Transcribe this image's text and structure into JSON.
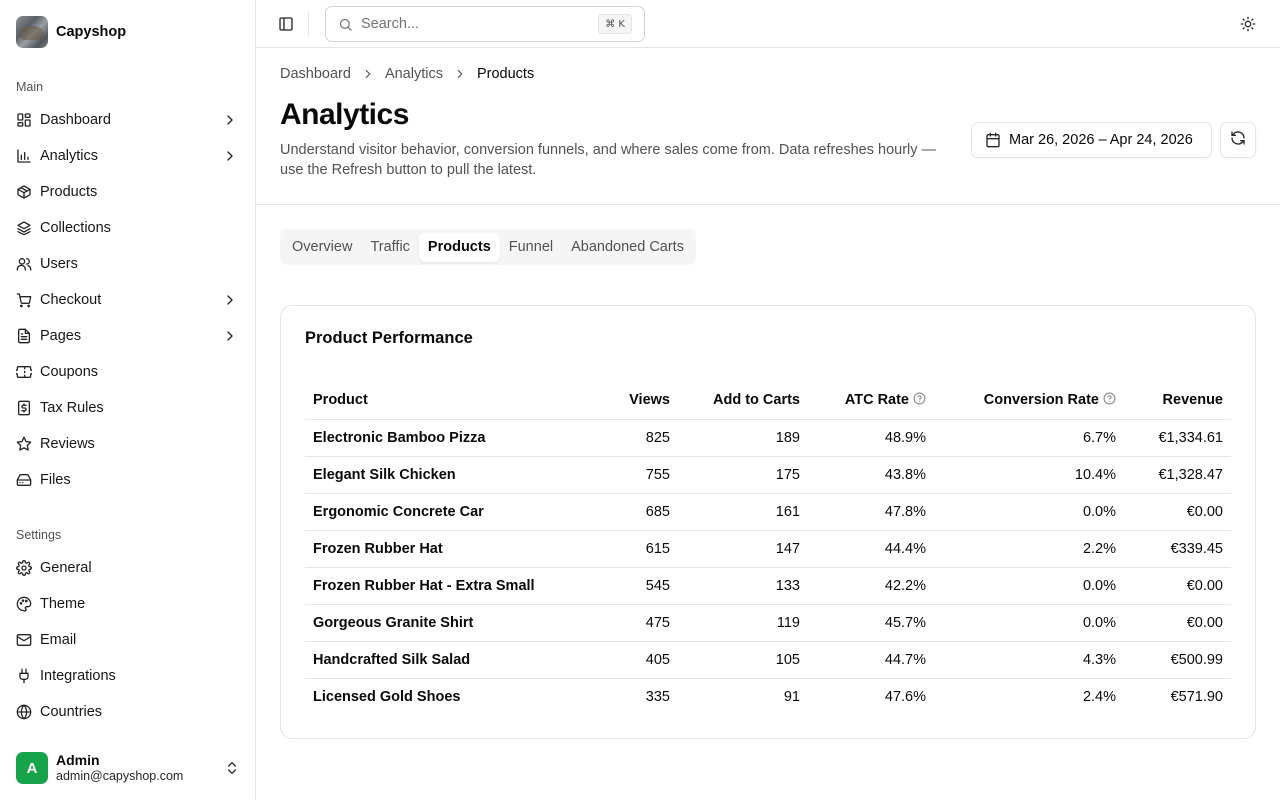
{
  "brand": {
    "name": "Capyshop"
  },
  "sidebar": {
    "main_label": "Main",
    "main_items": [
      {
        "label": "Dashboard",
        "icon": "layout-dashboard-icon",
        "has_children": true
      },
      {
        "label": "Analytics",
        "icon": "chart-bar-icon",
        "has_children": true
      },
      {
        "label": "Products",
        "icon": "package-icon",
        "has_children": false
      },
      {
        "label": "Collections",
        "icon": "layers-icon",
        "has_children": false
      },
      {
        "label": "Users",
        "icon": "users-icon",
        "has_children": false
      },
      {
        "label": "Checkout",
        "icon": "shopping-cart-icon",
        "has_children": true
      },
      {
        "label": "Pages",
        "icon": "file-text-icon",
        "has_children": true
      },
      {
        "label": "Coupons",
        "icon": "ticket-icon",
        "has_children": false
      },
      {
        "label": "Tax Rules",
        "icon": "receipt-dollar-icon",
        "has_children": false
      },
      {
        "label": "Reviews",
        "icon": "star-icon",
        "has_children": false
      },
      {
        "label": "Files",
        "icon": "hard-drive-icon",
        "has_children": false
      }
    ],
    "settings_label": "Settings",
    "settings_items": [
      {
        "label": "General",
        "icon": "gear-icon"
      },
      {
        "label": "Theme",
        "icon": "palette-icon"
      },
      {
        "label": "Email",
        "icon": "mail-icon"
      },
      {
        "label": "Integrations",
        "icon": "plug-icon"
      },
      {
        "label": "Countries",
        "icon": "globe-icon"
      }
    ]
  },
  "user": {
    "initial": "A",
    "name": "Admin",
    "email": "admin@capyshop.com",
    "avatar_color": "#16a34a"
  },
  "topbar": {
    "search_placeholder": "Search...",
    "search_shortcut": "⌘ K"
  },
  "breadcrumb": [
    "Dashboard",
    "Analytics",
    "Products"
  ],
  "header": {
    "title": "Analytics",
    "description": "Understand visitor behavior, conversion funnels, and where sales come from. Data refreshes hourly — use the Refresh button to pull the latest.",
    "date_range": "Mar 26, 2026 – Apr 24, 2026"
  },
  "tabs": [
    {
      "label": "Overview",
      "active": false
    },
    {
      "label": "Traffic",
      "active": false
    },
    {
      "label": "Products",
      "active": true
    },
    {
      "label": "Funnel",
      "active": false
    },
    {
      "label": "Abandoned Carts",
      "active": false
    }
  ],
  "performance": {
    "title": "Product Performance",
    "columns": [
      "Product",
      "Views",
      "Add to Carts",
      "ATC Rate",
      "Conversion Rate",
      "Revenue"
    ],
    "rows": [
      [
        "Electronic Bamboo Pizza",
        "825",
        "189",
        "48.9%",
        "6.7%",
        "€1,334.61"
      ],
      [
        "Elegant Silk Chicken",
        "755",
        "175",
        "43.8%",
        "10.4%",
        "€1,328.47"
      ],
      [
        "Ergonomic Concrete Car",
        "685",
        "161",
        "47.8%",
        "0.0%",
        "€0.00"
      ],
      [
        "Frozen Rubber Hat",
        "615",
        "147",
        "44.4%",
        "2.2%",
        "€339.45"
      ],
      [
        "Frozen Rubber Hat - Extra Small",
        "545",
        "133",
        "42.2%",
        "0.0%",
        "€0.00"
      ],
      [
        "Gorgeous Granite Shirt",
        "475",
        "119",
        "45.7%",
        "0.0%",
        "€0.00"
      ],
      [
        "Handcrafted Silk Salad",
        "405",
        "105",
        "44.7%",
        "4.3%",
        "€500.99"
      ],
      [
        "Licensed Gold Shoes",
        "335",
        "91",
        "47.6%",
        "2.4%",
        "€571.90"
      ]
    ]
  }
}
